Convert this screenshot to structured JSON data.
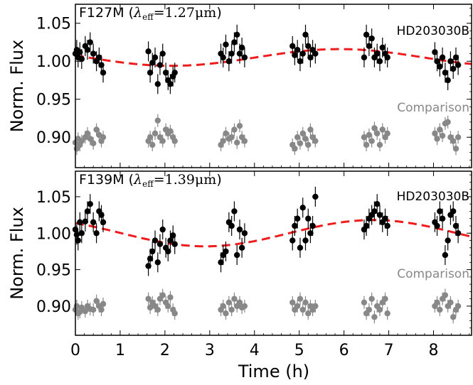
{
  "chart_data": [
    {
      "type": "scatter",
      "panel_label": "F127M",
      "lambda_symbol": "λ",
      "lambda_sub": "eff",
      "lambda_value": "=1.27μm",
      "ylabel": "Norm. Flux",
      "xlabel": "",
      "xlim": [
        0,
        8.85
      ],
      "ylim": [
        0.86,
        1.075
      ],
      "yticks": [
        0.9,
        0.95,
        1.0,
        1.05
      ],
      "ytick_labels": [
        "0.90",
        "0.95",
        "1.00",
        "1.05"
      ],
      "grid": false,
      "colors": {
        "target": "#000000",
        "comparison": "#888888",
        "model": "#ee1c1c"
      },
      "series": [
        {
          "name": "HD203030B",
          "color": "#000000",
          "x": [
            0.0,
            0.03,
            0.06,
            0.1,
            0.14,
            0.22,
            0.27,
            0.33,
            0.4,
            0.47,
            0.53,
            0.58,
            0.62,
            1.63,
            1.67,
            1.72,
            1.78,
            1.84,
            1.89,
            1.95,
            2.02,
            2.07,
            2.12,
            2.18,
            2.22,
            3.25,
            3.3,
            3.36,
            3.43,
            3.49,
            3.55,
            3.61,
            3.67,
            3.72,
            3.78,
            4.85,
            4.9,
            4.96,
            5.02,
            5.08,
            5.14,
            5.2,
            5.25,
            5.3,
            5.36,
            6.45,
            6.5,
            6.56,
            6.62,
            6.68,
            6.74,
            6.8,
            6.86,
            6.92,
            6.97,
            8.03,
            8.08,
            8.14,
            8.2,
            8.26,
            8.32,
            8.38,
            8.44,
            8.5,
            8.55
          ],
          "y": [
            1.01,
            1.015,
            1.005,
            1.012,
            1.003,
            1.02,
            1.015,
            1.025,
            1.01,
            1.0,
            1.005,
            0.995,
            0.985,
            1.013,
            0.985,
            0.998,
            1.005,
            0.97,
            0.995,
            1.01,
            0.985,
            0.975,
            0.97,
            0.98,
            0.985,
            1.01,
            1.005,
            1.022,
            1.0,
            1.01,
            1.025,
            1.035,
            1.01,
            1.018,
            1.005,
            1.02,
            1.008,
            1.015,
            1.0,
            1.01,
            1.035,
            1.02,
            1.005,
            1.015,
            1.01,
            1.005,
            1.035,
            1.02,
            1.03,
            1.005,
            1.01,
            1.0,
            1.018,
            1.01,
            1.005,
            1.012,
            1.0,
            0.993,
            1.005,
            0.985,
            0.975,
            1.0,
            0.99,
            1.005,
            0.995
          ]
        },
        {
          "name": "Comparison",
          "color": "#888888",
          "x": [
            0.0,
            0.03,
            0.06,
            0.1,
            0.14,
            0.22,
            0.27,
            0.33,
            0.4,
            0.47,
            0.53,
            0.58,
            0.62,
            1.63,
            1.67,
            1.72,
            1.78,
            1.84,
            1.89,
            1.95,
            2.02,
            2.07,
            2.12,
            2.18,
            2.22,
            3.25,
            3.3,
            3.36,
            3.43,
            3.49,
            3.55,
            3.61,
            3.67,
            3.72,
            3.78,
            4.85,
            4.9,
            4.96,
            5.02,
            5.08,
            5.14,
            5.2,
            5.25,
            5.3,
            5.36,
            6.45,
            6.5,
            6.56,
            6.62,
            6.68,
            6.74,
            6.8,
            6.86,
            6.92,
            6.97,
            8.03,
            8.08,
            8.14,
            8.2,
            8.26,
            8.32,
            8.38,
            8.44,
            8.5,
            8.55
          ],
          "y": [
            0.893,
            0.885,
            0.898,
            0.89,
            0.895,
            0.9,
            0.905,
            0.898,
            0.892,
            0.91,
            0.903,
            0.895,
            0.9,
            0.895,
            0.9,
            0.89,
            0.905,
            0.922,
            0.9,
            0.895,
            0.91,
            0.905,
            0.908,
            0.9,
            0.895,
            0.89,
            0.895,
            0.905,
            0.898,
            0.9,
            0.91,
            0.893,
            0.915,
            0.9,
            0.895,
            0.89,
            0.885,
            0.9,
            0.892,
            0.905,
            0.898,
            0.89,
            0.91,
            0.9,
            0.895,
            0.9,
            0.89,
            0.903,
            0.895,
            0.912,
            0.905,
            0.89,
            0.91,
            0.9,
            0.905,
            0.905,
            0.898,
            0.91,
            0.902,
            0.918,
            0.92,
            0.9,
            0.895,
            0.885,
            0.9
          ]
        },
        {
          "name": "model",
          "color": "#ee1c1c",
          "style": "dashed",
          "function": "sinusoid",
          "mean": 1.005,
          "amplitude": 0.011,
          "period_h": 7.5,
          "peak_time_h": 5.9
        }
      ],
      "annotations": [
        "HD203030B",
        "Comparison"
      ]
    },
    {
      "type": "scatter",
      "panel_label": "F139M",
      "lambda_symbol": "λ",
      "lambda_sub": "eff",
      "lambda_value": "=1.39μm",
      "ylabel": "Norm. Flux",
      "xlabel": "Time (h)",
      "xlim": [
        0,
        8.85
      ],
      "ylim": [
        0.86,
        1.085
      ],
      "xticks": [
        0,
        1,
        2,
        3,
        4,
        5,
        6,
        7,
        8
      ],
      "xtick_labels": [
        "0",
        "1",
        "2",
        "3",
        "4",
        "5",
        "6",
        "7",
        "8"
      ],
      "yticks": [
        0.9,
        0.95,
        1.0,
        1.05
      ],
      "ytick_labels": [
        "0.90",
        "0.95",
        "1.00",
        "1.05"
      ],
      "grid": false,
      "colors": {
        "target": "#000000",
        "comparison": "#888888",
        "model": "#ee1c1c"
      },
      "series": [
        {
          "name": "HD203030B",
          "color": "#000000",
          "x": [
            0.0,
            0.03,
            0.06,
            0.1,
            0.14,
            0.22,
            0.27,
            0.33,
            0.4,
            0.47,
            0.53,
            0.58,
            0.62,
            1.63,
            1.67,
            1.72,
            1.78,
            1.84,
            1.89,
            1.95,
            2.02,
            2.07,
            2.12,
            2.18,
            2.22,
            3.25,
            3.3,
            3.36,
            3.43,
            3.49,
            3.55,
            3.61,
            3.67,
            3.72,
            3.78,
            4.85,
            4.9,
            4.96,
            5.02,
            5.08,
            5.14,
            5.2,
            5.25,
            5.3,
            5.36,
            6.45,
            6.5,
            6.56,
            6.62,
            6.68,
            6.74,
            6.8,
            6.86,
            6.92,
            6.97,
            8.03,
            8.08,
            8.14,
            8.2,
            8.26,
            8.32,
            8.38,
            8.44,
            8.5,
            8.55
          ],
          "y": [
            1.005,
            0.998,
            0.99,
            1.015,
            1.0,
            1.016,
            1.03,
            1.04,
            1.015,
            1.0,
            1.03,
            1.025,
            1.015,
            0.955,
            0.965,
            0.975,
            0.99,
            0.96,
            0.985,
            1.005,
            0.98,
            0.975,
            0.99,
            0.997,
            0.985,
            0.96,
            0.97,
            0.975,
            1.015,
            1.01,
            1.03,
            0.97,
            1.005,
            0.98,
            1.0,
            0.99,
            1.01,
            1.02,
            0.98,
            1.035,
            0.99,
            1.02,
            1.0,
            1.01,
            1.05,
            1.005,
            1.01,
            1.02,
            1.025,
            1.03,
            1.04,
            1.025,
            1.015,
            1.02,
            1.01,
            1.015,
            1.01,
            1.03,
            1.02,
            0.97,
            0.99,
            1.025,
            1.03,
            1.01,
            1.0
          ]
        },
        {
          "name": "Comparison",
          "color": "#888888",
          "x": [
            0.0,
            0.03,
            0.06,
            0.1,
            0.14,
            0.22,
            0.27,
            0.33,
            0.4,
            0.47,
            0.53,
            0.58,
            0.62,
            1.63,
            1.67,
            1.72,
            1.78,
            1.84,
            1.89,
            1.95,
            2.02,
            2.07,
            2.12,
            2.18,
            2.22,
            3.25,
            3.3,
            3.36,
            3.43,
            3.49,
            3.55,
            3.61,
            3.67,
            3.72,
            3.78,
            4.85,
            4.9,
            4.96,
            5.02,
            5.08,
            5.14,
            5.2,
            5.25,
            5.3,
            5.36,
            6.45,
            6.5,
            6.56,
            6.62,
            6.68,
            6.74,
            6.8,
            6.86,
            6.92,
            6.97,
            8.03,
            8.08,
            8.14,
            8.2,
            8.26,
            8.32,
            8.38,
            8.44,
            8.5,
            8.55
          ],
          "y": [
            0.895,
            0.9,
            0.89,
            0.892,
            0.898,
            0.893,
            0.9,
            0.896,
            0.895,
            0.907,
            0.9,
            0.895,
            0.903,
            0.91,
            0.898,
            0.905,
            0.9,
            0.895,
            0.91,
            0.915,
            0.905,
            0.9,
            0.912,
            0.895,
            0.89,
            0.895,
            0.9,
            0.89,
            0.905,
            0.895,
            0.91,
            0.9,
            0.905,
            0.898,
            0.9,
            0.905,
            0.895,
            0.9,
            0.91,
            0.895,
            0.905,
            0.89,
            0.9,
            0.895,
            0.9,
            0.905,
            0.89,
            0.895,
            0.91,
            0.885,
            0.9,
            0.895,
            0.905,
            0.91,
            0.89,
            0.9,
            0.905,
            0.895,
            0.91,
            0.915,
            0.9,
            0.905,
            0.885,
            0.895,
            0.9
          ]
        },
        {
          "name": "model",
          "color": "#ee1c1c",
          "style": "dashed",
          "function": "sinusoid",
          "mean": 1.0,
          "amplitude": 0.018,
          "period_h": 7.5,
          "peak_time_h": 6.65
        }
      ],
      "annotations": [
        "HD203030B",
        "Comparison"
      ]
    }
  ]
}
